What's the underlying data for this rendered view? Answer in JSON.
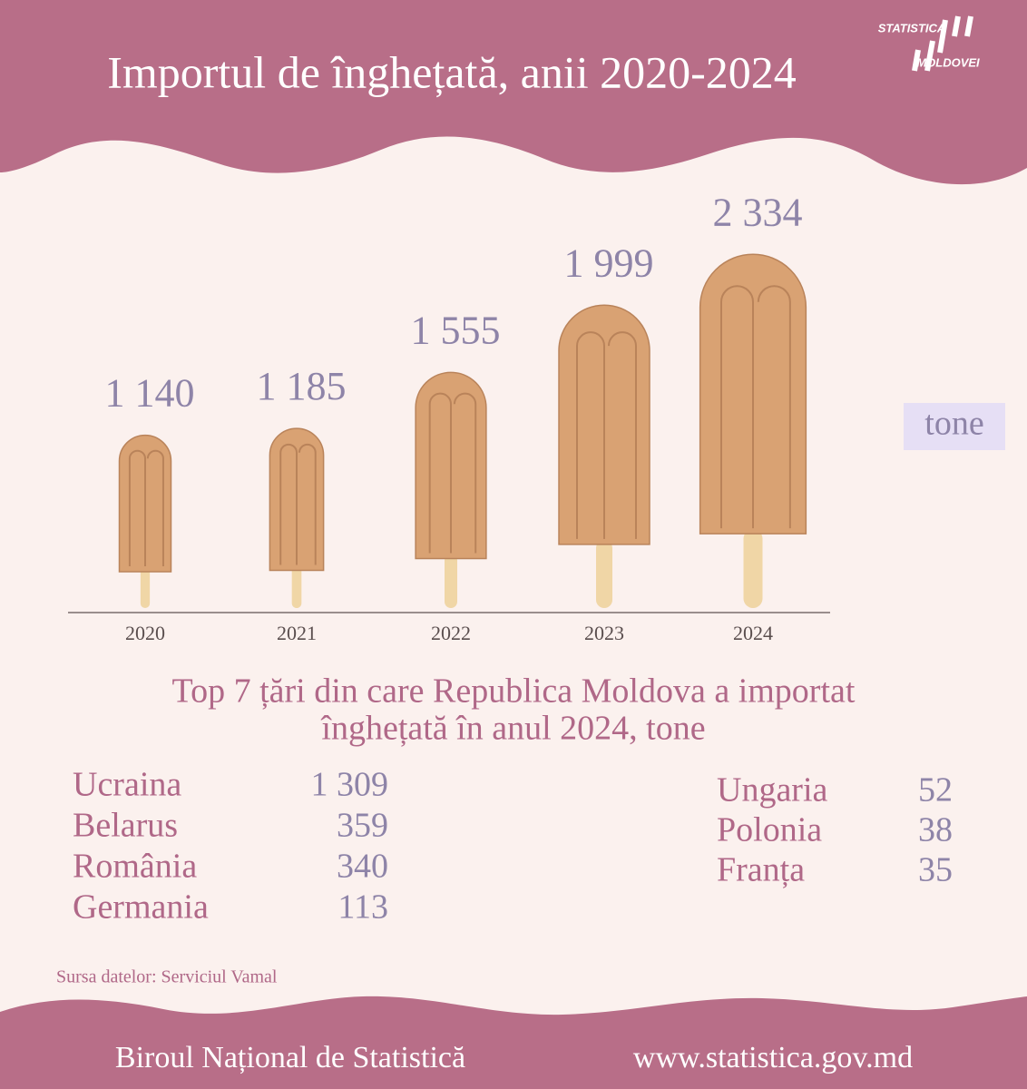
{
  "chart_data": {
    "type": "bar",
    "title": "Importul de înghețată, anii 2020-2024",
    "categories": [
      "2020",
      "2021",
      "2022",
      "2023",
      "2024"
    ],
    "values": [
      1140,
      1185,
      1555,
      1999,
      2334
    ],
    "value_labels": [
      "1 140",
      "1 185",
      "1 555",
      "1 999",
      "2 334"
    ],
    "unit": "tone",
    "color": "#d9a273"
  },
  "logo": {
    "line1": "STATISTICA",
    "line2": "MOLDOVEI"
  },
  "table": {
    "title_lines": [
      "Top 7 țări din care Republica Moldova a importat",
      "înghețată în anul 2024, tone"
    ],
    "left": [
      [
        "Ucraina",
        "1 309"
      ],
      [
        "Belarus",
        "359"
      ],
      [
        "România",
        "340"
      ],
      [
        "Germania",
        "113"
      ]
    ],
    "right": [
      [
        "Ungaria",
        "52"
      ],
      [
        "Polonia",
        "38"
      ],
      [
        "Franța",
        "35"
      ]
    ]
  },
  "source": "Sursa datelor: Serviciul Vamal",
  "footer": {
    "left": "Biroul Național de Statistică",
    "right": "www.statistica.gov.md"
  }
}
